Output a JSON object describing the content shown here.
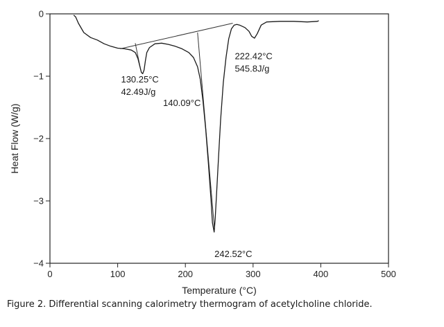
{
  "caption": "Figure 2. Differential scanning calorimetry thermogram of acetylcholine chloride.",
  "chart_data": {
    "type": "line",
    "title": "",
    "xlabel": "Temperature (°C)",
    "ylabel": "Heat Flow (W/g)",
    "xlim": [
      0,
      500
    ],
    "ylim": [
      -4,
      0
    ],
    "xticks": [
      "0",
      "100",
      "200",
      "300",
      "400",
      "500"
    ],
    "yticks": [
      "0",
      "−1",
      "−2",
      "−3",
      "−4"
    ],
    "grid": false,
    "legend": "none",
    "series": [
      {
        "points": [
          [
            35,
            -0.02
          ],
          [
            38,
            -0.05
          ],
          [
            42,
            -0.15
          ],
          [
            50,
            -0.3
          ],
          [
            60,
            -0.38
          ],
          [
            70,
            -0.42
          ],
          [
            80,
            -0.48
          ],
          [
            90,
            -0.52
          ],
          [
            100,
            -0.55
          ],
          [
            110,
            -0.56
          ],
          [
            120,
            -0.58
          ],
          [
            126,
            -0.62
          ],
          [
            130,
            -0.72
          ],
          [
            133,
            -0.85
          ],
          [
            135,
            -0.94
          ],
          [
            137,
            -0.96
          ],
          [
            139,
            -0.9
          ],
          [
            141,
            -0.75
          ],
          [
            143,
            -0.62
          ],
          [
            147,
            -0.54
          ],
          [
            155,
            -0.48
          ],
          [
            165,
            -0.47
          ],
          [
            175,
            -0.49
          ],
          [
            185,
            -0.52
          ],
          [
            195,
            -0.56
          ],
          [
            205,
            -0.62
          ],
          [
            212,
            -0.7
          ],
          [
            218,
            -0.85
          ],
          [
            222,
            -1.05
          ],
          [
            226,
            -1.4
          ],
          [
            230,
            -1.85
          ],
          [
            234,
            -2.4
          ],
          [
            238,
            -3.0
          ],
          [
            240,
            -3.35
          ],
          [
            242.5,
            -3.5
          ],
          [
            244,
            -3.3
          ],
          [
            246,
            -2.9
          ],
          [
            249,
            -2.3
          ],
          [
            252,
            -1.7
          ],
          [
            256,
            -1.1
          ],
          [
            260,
            -0.7
          ],
          [
            264,
            -0.4
          ],
          [
            268,
            -0.24
          ],
          [
            272,
            -0.18
          ],
          [
            276,
            -0.17
          ],
          [
            280,
            -0.18
          ],
          [
            288,
            -0.22
          ],
          [
            294,
            -0.28
          ],
          [
            298,
            -0.36
          ],
          [
            302,
            -0.39
          ],
          [
            306,
            -0.32
          ],
          [
            312,
            -0.18
          ],
          [
            320,
            -0.13
          ],
          [
            340,
            -0.12
          ],
          [
            360,
            -0.12
          ],
          [
            380,
            -0.13
          ],
          [
            395,
            -0.12
          ],
          [
            397,
            -0.11
          ]
        ]
      }
    ],
    "baselines": [
      {
        "points": [
          [
            104,
            -0.56
          ],
          [
            270,
            -0.15
          ]
        ]
      },
      {
        "points": [
          [
            126,
            -0.47
          ],
          [
            134,
            -0.9
          ]
        ]
      },
      {
        "points": [
          [
            218,
            -0.3
          ],
          [
            243,
            -3.45
          ]
        ]
      }
    ],
    "annotations": [
      {
        "lines": [
          "130.25°C",
          "42.49J/g"
        ],
        "x": 105,
        "y": -1.1
      },
      {
        "lines": [
          "140.09°C"
        ],
        "x": 167,
        "y": -1.48
      },
      {
        "lines": [
          "222.42°C",
          "545.8J/g"
        ],
        "x": 273,
        "y": -0.73
      },
      {
        "lines": [
          "242.52°C"
        ],
        "x": 243,
        "y": -3.9
      }
    ]
  }
}
